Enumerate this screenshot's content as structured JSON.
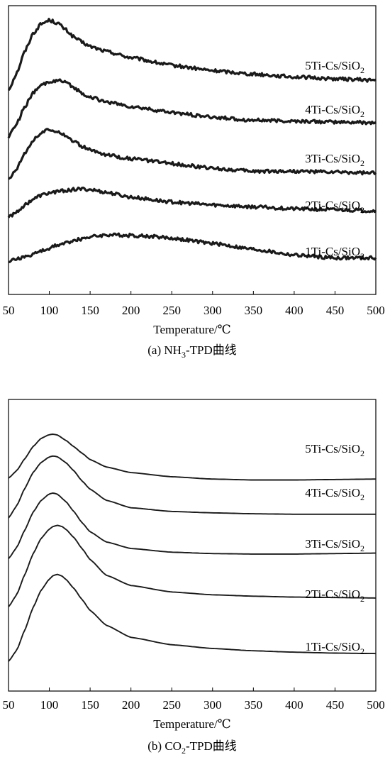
{
  "chart_data": [
    {
      "type": "line",
      "caption_prefix": "(a) NH",
      "caption_sub": "3",
      "caption_suffix": "-TPD曲线",
      "xlabel": "Temperature/℃",
      "x_ticks": [
        50,
        100,
        150,
        200,
        250,
        300,
        350,
        400,
        450,
        500
      ],
      "xlim": [
        50,
        500
      ],
      "y_ticks": "none",
      "series": [
        {
          "name": "5Ti-Cs/SiO",
          "sub": "2",
          "curve": "5Ti-Cs/SiO2",
          "noisy": true,
          "x": [
            50,
            60,
            70,
            80,
            90,
            100,
            110,
            120,
            130,
            140,
            150,
            170,
            200,
            250,
            300,
            350,
            400,
            450,
            500
          ],
          "y": [
            3.05,
            3.4,
            3.85,
            4.22,
            4.42,
            4.5,
            4.44,
            4.3,
            4.15,
            4.04,
            3.95,
            3.85,
            3.72,
            3.56,
            3.45,
            3.38,
            3.32,
            3.28,
            3.25
          ]
        },
        {
          "name": "4Ti-Cs/SiO",
          "sub": "2",
          "curve": "4Ti-Cs/SiO2",
          "noisy": true,
          "x": [
            50,
            60,
            70,
            80,
            90,
            100,
            110,
            120,
            130,
            140,
            150,
            170,
            200,
            250,
            300,
            350,
            400,
            450,
            500
          ],
          "y": [
            2.08,
            2.35,
            2.7,
            2.98,
            3.14,
            3.22,
            3.25,
            3.2,
            3.1,
            2.98,
            2.9,
            2.8,
            2.7,
            2.58,
            2.48,
            2.42,
            2.4,
            2.38,
            2.37
          ]
        },
        {
          "name": "3Ti-Cs/SiO",
          "sub": "2",
          "curve": "3Ti-Cs/SiO2",
          "noisy": true,
          "x": [
            50,
            60,
            70,
            80,
            90,
            100,
            110,
            120,
            130,
            140,
            150,
            170,
            200,
            250,
            300,
            350,
            400,
            450,
            500
          ],
          "y": [
            1.18,
            1.42,
            1.75,
            2.0,
            2.16,
            2.22,
            2.2,
            2.1,
            1.98,
            1.88,
            1.8,
            1.7,
            1.62,
            1.52,
            1.42,
            1.36,
            1.36,
            1.34,
            1.32
          ]
        },
        {
          "name": "2Ti-Cs/SiO",
          "sub": "2",
          "curve": "2Ti-Cs/SiO2",
          "noisy": true,
          "x": [
            50,
            60,
            70,
            80,
            90,
            100,
            110,
            120,
            130,
            140,
            150,
            170,
            200,
            250,
            300,
            350,
            400,
            450,
            500
          ],
          "y": [
            0.4,
            0.52,
            0.66,
            0.78,
            0.86,
            0.91,
            0.94,
            0.96,
            0.98,
            0.99,
            0.98,
            0.92,
            0.82,
            0.72,
            0.66,
            0.62,
            0.58,
            0.56,
            0.54
          ]
        },
        {
          "name": "1Ti-Cs/SiO",
          "sub": "2",
          "curve": "1Ti-Cs/SiO2",
          "noisy": true,
          "x": [
            50,
            70,
            90,
            110,
            130,
            150,
            170,
            190,
            210,
            230,
            250,
            300,
            350,
            400,
            450,
            500
          ],
          "y": [
            -0.5,
            -0.42,
            -0.3,
            -0.18,
            -0.08,
            0.0,
            0.04,
            0.03,
            0.02,
            0.0,
            -0.03,
            -0.14,
            -0.26,
            -0.38,
            -0.44,
            -0.44
          ]
        }
      ]
    },
    {
      "type": "line",
      "caption_prefix": "(b) CO",
      "caption_sub": "2",
      "caption_suffix": "-TPD曲线",
      "xlabel": "Temperature/℃",
      "x_ticks": [
        50,
        100,
        150,
        200,
        250,
        300,
        350,
        400,
        450,
        500
      ],
      "xlim": [
        50,
        500
      ],
      "y_ticks": "none",
      "series": [
        {
          "name": "5Ti-Cs/SiO",
          "sub": "2",
          "curve": "5Ti-Cs/SiO2",
          "noisy": false,
          "x": [
            50,
            60,
            70,
            80,
            90,
            100,
            105,
            110,
            120,
            130,
            140,
            150,
            170,
            200,
            250,
            300,
            350,
            400,
            450,
            500
          ],
          "y": [
            4.1,
            4.26,
            4.52,
            4.78,
            4.96,
            5.04,
            5.05,
            5.03,
            4.92,
            4.78,
            4.64,
            4.5,
            4.34,
            4.22,
            4.13,
            4.08,
            4.06,
            4.06,
            4.07,
            4.08
          ]
        },
        {
          "name": "4Ti-Cs/SiO",
          "sub": "2",
          "curve": "4Ti-Cs/SiO2",
          "noisy": false,
          "x": [
            50,
            60,
            70,
            80,
            90,
            100,
            105,
            110,
            120,
            130,
            140,
            150,
            170,
            200,
            250,
            300,
            350,
            400,
            450,
            500
          ],
          "y": [
            3.24,
            3.5,
            3.88,
            4.22,
            4.44,
            4.56,
            4.58,
            4.56,
            4.44,
            4.26,
            4.04,
            3.86,
            3.62,
            3.46,
            3.38,
            3.35,
            3.33,
            3.32,
            3.32,
            3.32
          ]
        },
        {
          "name": "3Ti-Cs/SiO",
          "sub": "2",
          "curve": "3Ti-Cs/SiO2",
          "noisy": false,
          "x": [
            50,
            60,
            70,
            80,
            90,
            100,
            105,
            110,
            120,
            130,
            140,
            150,
            170,
            200,
            250,
            300,
            350,
            400,
            450,
            500
          ],
          "y": [
            2.36,
            2.6,
            2.98,
            3.36,
            3.62,
            3.76,
            3.78,
            3.75,
            3.6,
            3.38,
            3.14,
            2.94,
            2.72,
            2.58,
            2.5,
            2.47,
            2.46,
            2.46,
            2.47,
            2.48
          ]
        },
        {
          "name": "2Ti-Cs/SiO",
          "sub": "2",
          "curve": "2Ti-Cs/SiO2",
          "noisy": false,
          "x": [
            50,
            60,
            70,
            80,
            90,
            100,
            105,
            110,
            115,
            120,
            130,
            140,
            150,
            170,
            200,
            250,
            300,
            350,
            400,
            450,
            500
          ],
          "y": [
            1.32,
            1.58,
            2.02,
            2.46,
            2.8,
            3.0,
            3.06,
            3.08,
            3.06,
            3.0,
            2.82,
            2.58,
            2.34,
            2.0,
            1.78,
            1.64,
            1.58,
            1.55,
            1.53,
            1.52,
            1.51
          ]
        },
        {
          "name": "1Ti-Cs/SiO",
          "sub": "2",
          "curve": "1Ti-Cs/SiO2",
          "noisy": false,
          "x": [
            50,
            60,
            70,
            80,
            90,
            100,
            105,
            110,
            115,
            120,
            130,
            140,
            150,
            170,
            200,
            250,
            300,
            350,
            400,
            450,
            500
          ],
          "y": [
            0.14,
            0.38,
            0.82,
            1.3,
            1.68,
            1.92,
            2.0,
            2.02,
            1.99,
            1.92,
            1.72,
            1.48,
            1.24,
            0.92,
            0.66,
            0.5,
            0.42,
            0.37,
            0.34,
            0.32,
            0.31
          ]
        }
      ]
    }
  ]
}
